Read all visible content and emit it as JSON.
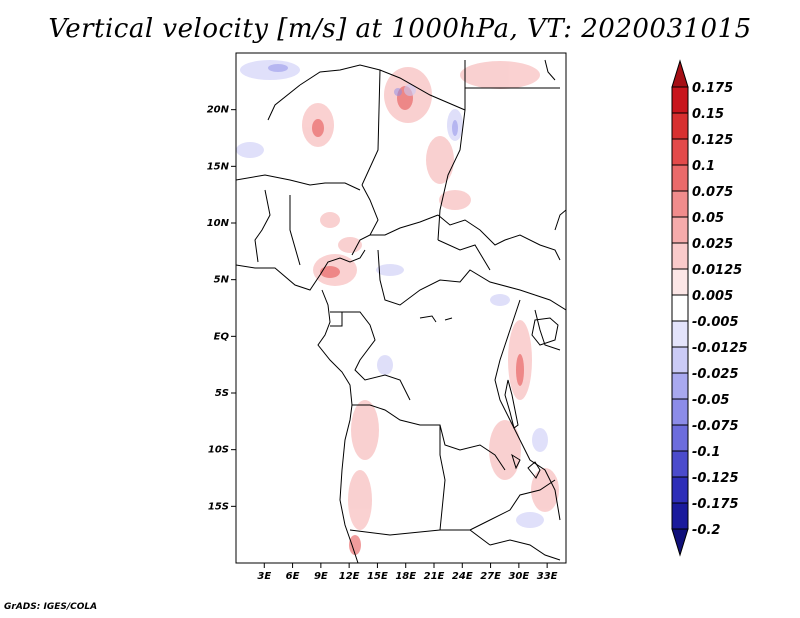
{
  "title": "Vertical velocity [m/s] at 1000hPa, VT: 2020031015",
  "credit": "GrADS: IGES/COLA",
  "map": {
    "lon_range": [
      0,
      35
    ],
    "lat_range": [
      -20,
      25
    ],
    "lat_ticks": [
      {
        "value": 20,
        "label": "20N"
      },
      {
        "value": 15,
        "label": "15N"
      },
      {
        "value": 10,
        "label": "10N"
      },
      {
        "value": 5,
        "label": "5N"
      },
      {
        "value": 0,
        "label": "EQ"
      },
      {
        "value": -5,
        "label": "5S"
      },
      {
        "value": -10,
        "label": "10S"
      },
      {
        "value": -15,
        "label": "15S"
      }
    ],
    "lon_ticks": [
      {
        "value": 3,
        "label": "3E"
      },
      {
        "value": 6,
        "label": "6E"
      },
      {
        "value": 9,
        "label": "9E"
      },
      {
        "value": 12,
        "label": "12E"
      },
      {
        "value": 15,
        "label": "15E"
      },
      {
        "value": 18,
        "label": "18E"
      },
      {
        "value": 21,
        "label": "21E"
      },
      {
        "value": 24,
        "label": "24E"
      },
      {
        "value": 27,
        "label": "27E"
      },
      {
        "value": 30,
        "label": "30E"
      },
      {
        "value": 33,
        "label": "33E"
      }
    ]
  },
  "colorbar": {
    "levels": [
      "0.175",
      "0.15",
      "0.125",
      "0.1",
      "0.075",
      "0.05",
      "0.025",
      "0.0125",
      "0.005",
      "-0.005",
      "-0.0125",
      "-0.025",
      "-0.05",
      "-0.075",
      "-0.1",
      "-0.125",
      "-0.175",
      "-0.2"
    ],
    "colors": [
      "#a50f15",
      "#c8161d",
      "#d73030",
      "#e34a4a",
      "#ea6a6a",
      "#f08c8c",
      "#f5abab",
      "#f9caca",
      "#fce6e6",
      "#ffffff",
      "#e4e4fb",
      "#cbcbf6",
      "#a9a9ef",
      "#8c8ce8",
      "#6c6cdc",
      "#4b4bcc",
      "#2e2eb8",
      "#1a1a9c",
      "#10107a"
    ]
  }
}
